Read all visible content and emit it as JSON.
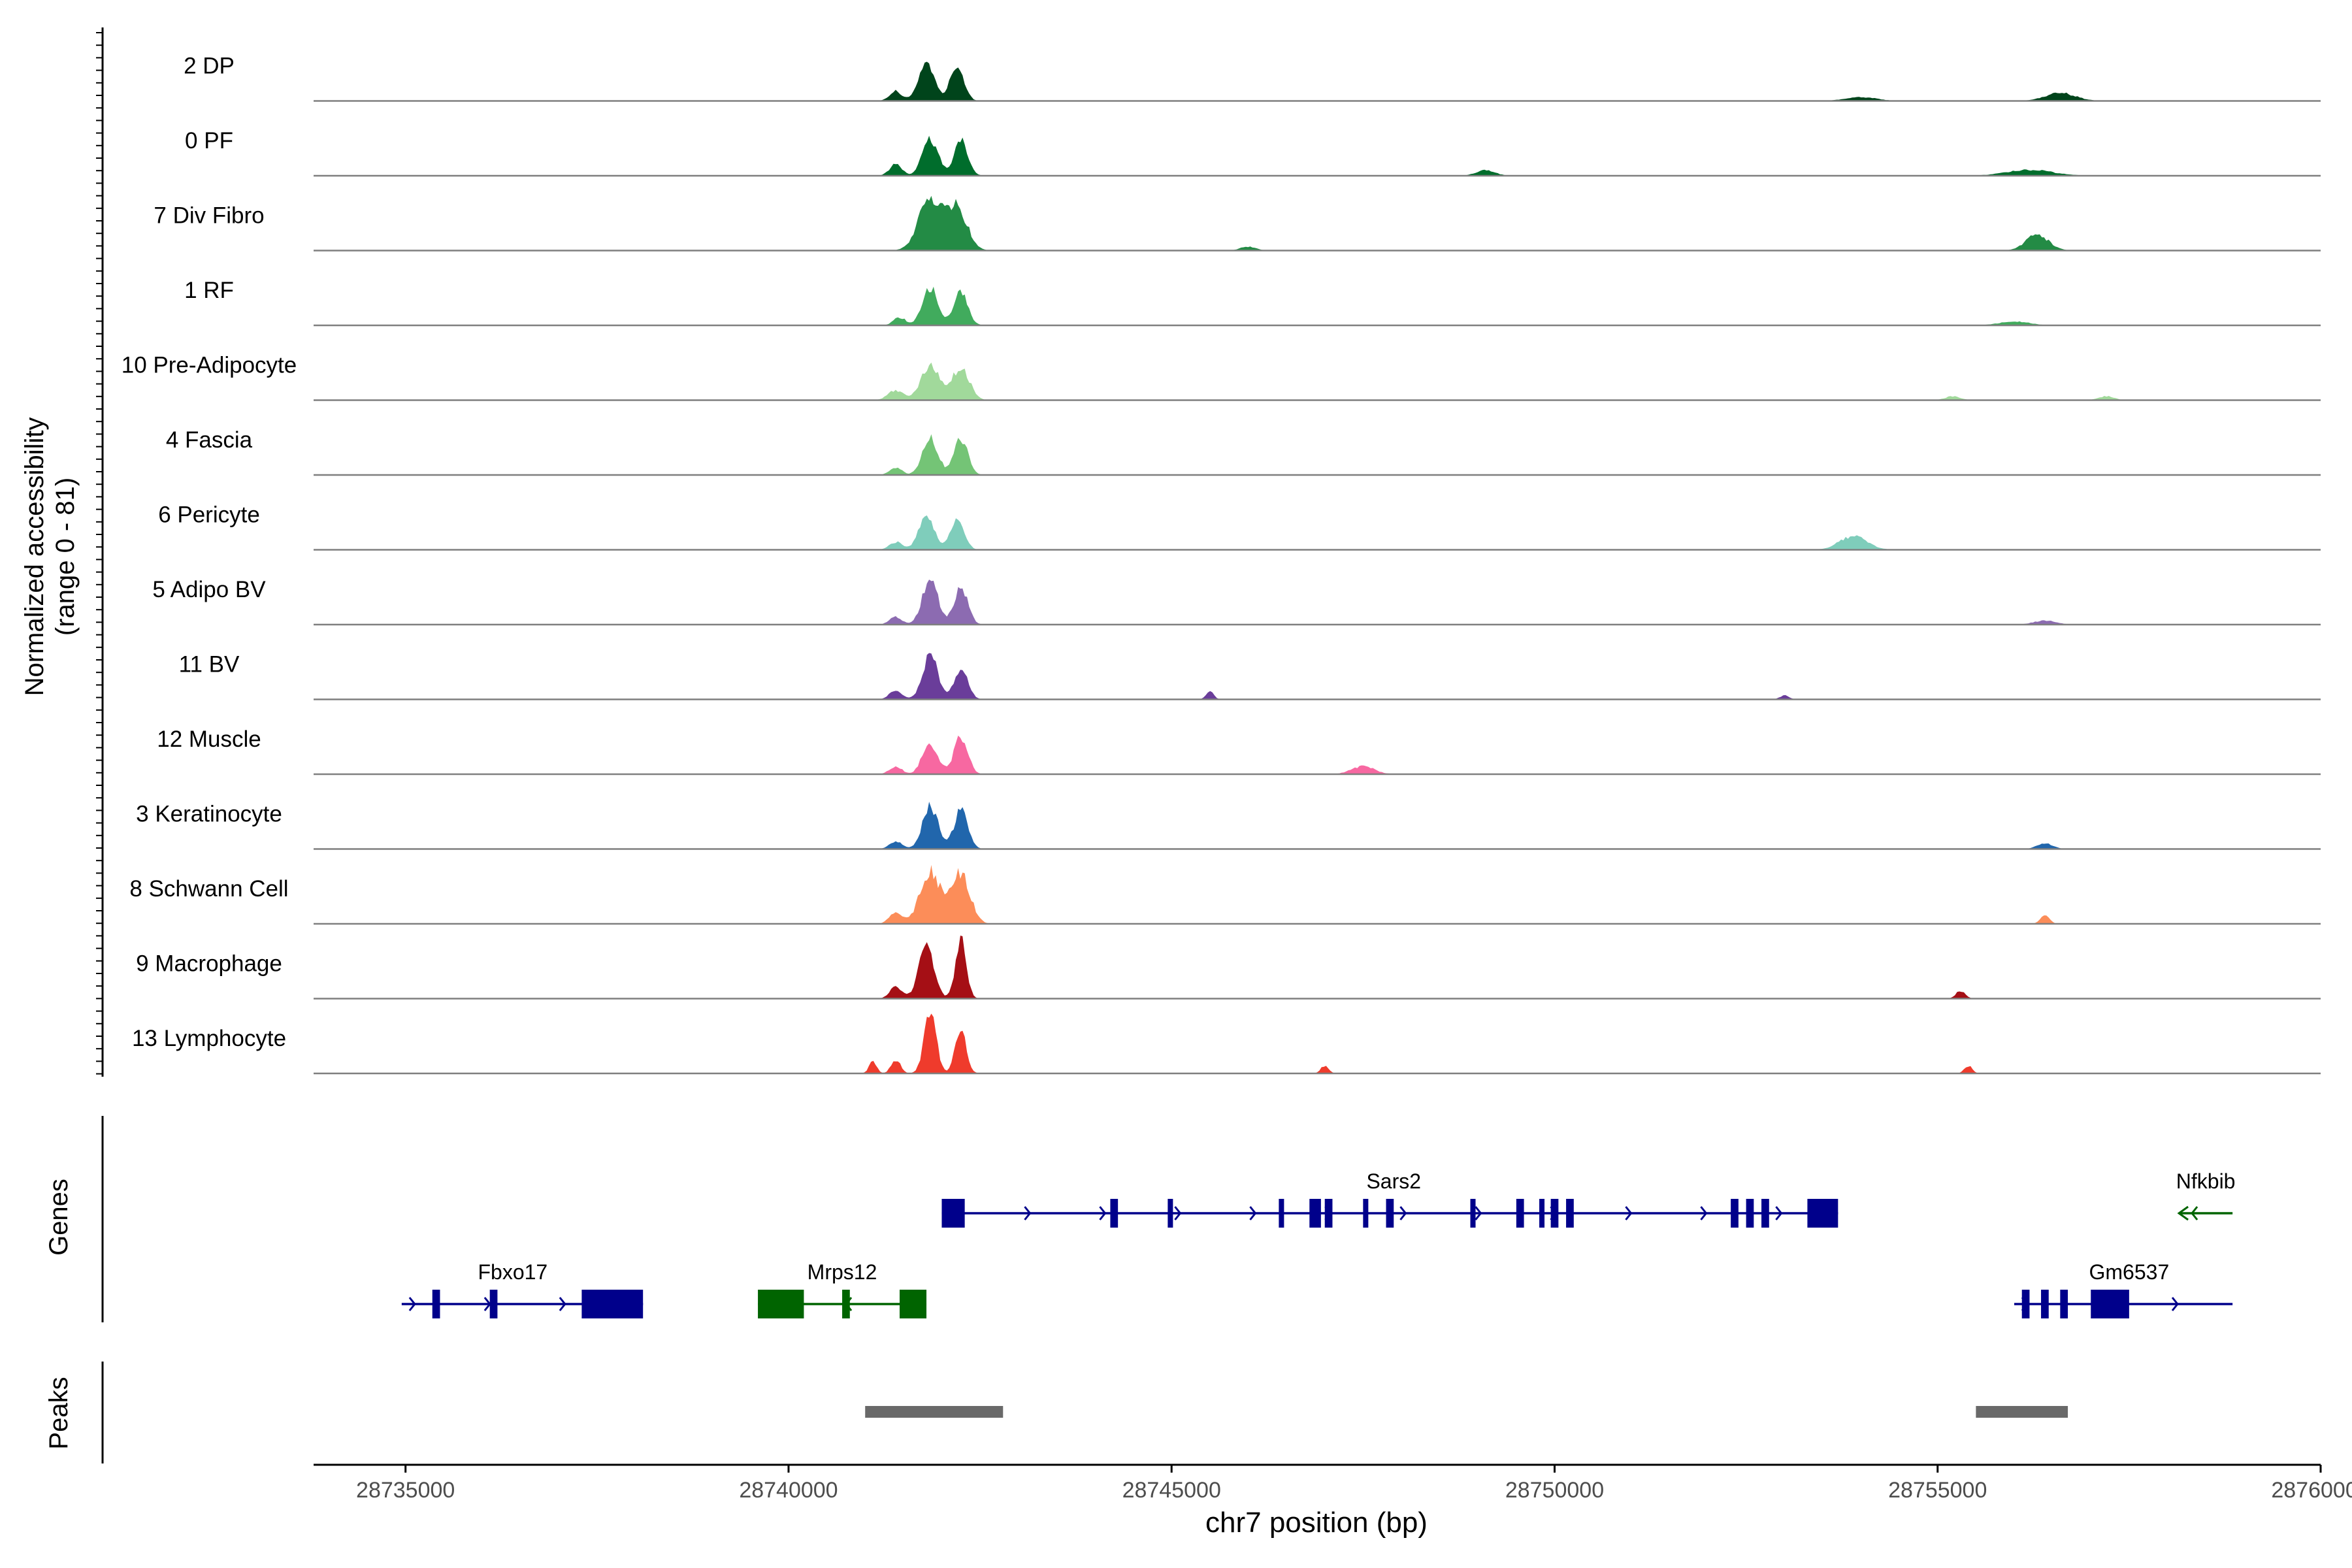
{
  "chart_data": {
    "type": "area",
    "title": "",
    "ylabel_line1": "Normalized accessibility",
    "ylabel_line2": "(range 0 - 81)",
    "xlabel": "chr7 position (bp)",
    "xlim": [
      28733800,
      28760000
    ],
    "ylim": [
      0,
      81
    ],
    "x_ticks": [
      28735000,
      28740000,
      28745000,
      28750000,
      28755000,
      28760000
    ],
    "x_tick_labels": [
      "28735000",
      "28740000",
      "28745000",
      "28750000",
      "28755000",
      "28760000"
    ],
    "tracks": [
      {
        "name": "2 DP",
        "color": "#00441b",
        "peaks": [
          [
            28741800,
            20,
            100
          ],
          [
            28742200,
            18,
            90
          ],
          [
            28741400,
            5,
            80
          ],
          [
            28756600,
            4,
            200
          ],
          [
            28754000,
            2,
            200
          ]
        ]
      },
      {
        "name": "0 PF",
        "color": "#006d2c",
        "peaks": [
          [
            28741850,
            19,
            100
          ],
          [
            28742250,
            18,
            90
          ],
          [
            28741400,
            6,
            80
          ],
          [
            28749100,
            3,
            120
          ],
          [
            28756200,
            3,
            300
          ]
        ]
      },
      {
        "name": "7 Div Fibro",
        "color": "#238b45",
        "peaks": [
          [
            28741850,
            26,
            150
          ],
          [
            28742200,
            22,
            130
          ],
          [
            28756300,
            8,
            150
          ],
          [
            28746000,
            2,
            100
          ]
        ]
      },
      {
        "name": "1 RF",
        "color": "#41ab5d",
        "peaks": [
          [
            28741850,
            20,
            100
          ],
          [
            28742250,
            17,
            90
          ],
          [
            28741450,
            4,
            80
          ],
          [
            28756000,
            2,
            200
          ]
        ]
      },
      {
        "name": "10 Pre-Adipocyte",
        "color": "#a1d99b",
        "peaks": [
          [
            28741850,
            18,
            120
          ],
          [
            28742250,
            17,
            110
          ],
          [
            28741400,
            5,
            100
          ],
          [
            28757200,
            2,
            100
          ],
          [
            28755200,
            2,
            100
          ]
        ]
      },
      {
        "name": "4 Fascia",
        "color": "#74c476",
        "peaks": [
          [
            28741850,
            19,
            100
          ],
          [
            28742250,
            18,
            90
          ],
          [
            28741400,
            4,
            80
          ]
        ]
      },
      {
        "name": "6 Pericyte",
        "color": "#7fcdbb",
        "peaks": [
          [
            28741800,
            18,
            100
          ],
          [
            28742200,
            16,
            90
          ],
          [
            28753900,
            7,
            180
          ],
          [
            28741400,
            4,
            80
          ]
        ]
      },
      {
        "name": "5 Adipo BV",
        "color": "#8c6bb1",
        "peaks": [
          [
            28741850,
            24,
            100
          ],
          [
            28742250,
            19,
            90
          ],
          [
            28741400,
            4,
            80
          ],
          [
            28756400,
            2,
            150
          ]
        ]
      },
      {
        "name": "11 BV",
        "color": "#6a3d9a",
        "peaks": [
          [
            28741850,
            22,
            100
          ],
          [
            28742250,
            16,
            90
          ],
          [
            28741400,
            5,
            80
          ],
          [
            28745500,
            4,
            50
          ],
          [
            28753000,
            2,
            60
          ]
        ]
      },
      {
        "name": "12 Muscle",
        "color": "#f768a1",
        "peaks": [
          [
            28741850,
            16,
            100
          ],
          [
            28742250,
            19,
            90
          ],
          [
            28741400,
            4,
            80
          ],
          [
            28747500,
            4,
            150
          ]
        ]
      },
      {
        "name": "3 Keratinocyte",
        "color": "#2166ac",
        "peaks": [
          [
            28741850,
            22,
            100
          ],
          [
            28742250,
            20,
            90
          ],
          [
            28741400,
            4,
            80
          ],
          [
            28756400,
            3,
            100
          ]
        ]
      },
      {
        "name": "8 Schwann Cell",
        "color": "#fc8d59",
        "peaks": [
          [
            28741850,
            27,
            130
          ],
          [
            28742250,
            26,
            120
          ],
          [
            28741400,
            6,
            80
          ],
          [
            28756400,
            4,
            60
          ]
        ]
      },
      {
        "name": "9 Macrophage",
        "color": "#a50f15",
        "peaks": [
          [
            28741800,
            26,
            100
          ],
          [
            28742250,
            30,
            70
          ],
          [
            28741400,
            6,
            80
          ],
          [
            28755300,
            4,
            60
          ]
        ]
      },
      {
        "name": "13 Lymphocyte",
        "color": "#ef3b2c",
        "peaks": [
          [
            28741850,
            30,
            80
          ],
          [
            28742250,
            24,
            70
          ],
          [
            28741400,
            7,
            60
          ],
          [
            28741100,
            6,
            50
          ],
          [
            28755400,
            4,
            50
          ],
          [
            28747000,
            4,
            50
          ]
        ]
      }
    ],
    "genes": [
      {
        "name": "Sars2",
        "color": "#00008b",
        "strand": "+",
        "start": 28742000,
        "end": 28753700,
        "row": 0,
        "label_pos": 28747900,
        "exons": [
          [
            28742000,
            28742300
          ],
          [
            28744200,
            28744300
          ],
          [
            28744950,
            28745000
          ],
          [
            28746400,
            28746450
          ],
          [
            28746800,
            28746950
          ],
          [
            28747000,
            28747100
          ],
          [
            28747500,
            28747550
          ],
          [
            28747800,
            28747900
          ],
          [
            28748900,
            28748950
          ],
          [
            28749500,
            28749600
          ],
          [
            28749800,
            28749850
          ],
          [
            28749950,
            28750050
          ],
          [
            28750150,
            28750250
          ],
          [
            28752300,
            28752400
          ],
          [
            28752500,
            28752600
          ],
          [
            28752700,
            28752800
          ],
          [
            28753300,
            28753700
          ]
        ]
      },
      {
        "name": "Nfkbib",
        "color": "#006400",
        "strand": "-",
        "start": 28758150,
        "end": 28758850,
        "row": 0,
        "label_pos": 28758500,
        "exons": []
      },
      {
        "name": "Fbxo17",
        "color": "#00008b",
        "strand": "+",
        "start": 28734950,
        "end": 28738100,
        "row": 1,
        "label_pos": 28736400,
        "exons": [
          [
            28735350,
            28735450
          ],
          [
            28736100,
            28736200
          ],
          [
            28737300,
            28738100
          ]
        ]
      },
      {
        "name": "Mrps12",
        "color": "#006400",
        "strand": "-",
        "start": 28739600,
        "end": 28741800,
        "row": 1,
        "label_pos": 28740700,
        "exons": [
          [
            28739600,
            28740200
          ],
          [
            28740700,
            28740800
          ],
          [
            28741450,
            28741800
          ]
        ]
      },
      {
        "name": "Gm6537",
        "color": "#00008b",
        "strand": "+",
        "start": 28756000,
        "end": 28758850,
        "row": 1,
        "label_pos": 28757500,
        "exons": [
          [
            28756100,
            28756200
          ],
          [
            28756350,
            28756450
          ],
          [
            28756600,
            28756700
          ],
          [
            28757000,
            28757500
          ]
        ]
      }
    ],
    "peaks": [
      [
        28741000,
        28742800
      ],
      [
        28755500,
        28756700
      ]
    ],
    "section_labels": {
      "genes": "Genes",
      "peaks": "Peaks"
    }
  }
}
